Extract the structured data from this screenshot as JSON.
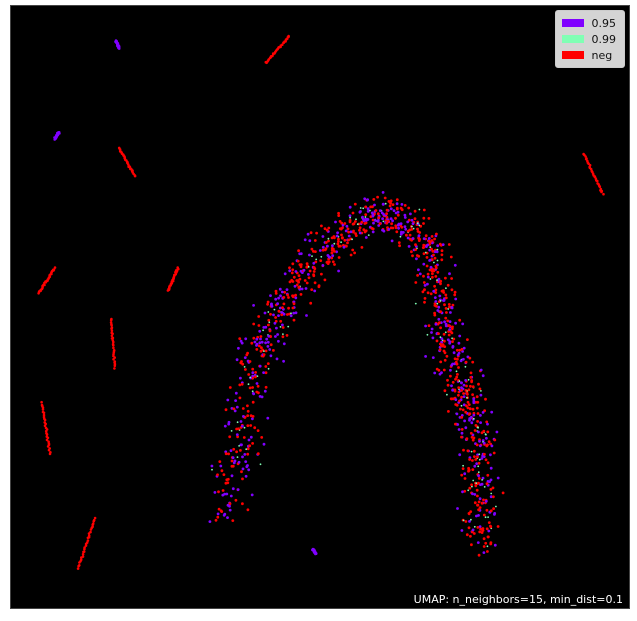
{
  "chart_data": {
    "type": "scatter",
    "annotation": "UMAP: n_neighbors=15, min_dist=0.1",
    "legend_placement": "top-right",
    "grid": false,
    "axes_ticks": false,
    "background": "#000000",
    "series": [
      {
        "name": "0.95",
        "color": "#8000ff"
      },
      {
        "name": "0.99",
        "color": "#80ffb4"
      },
      {
        "name": "neg",
        "color": "#ff0000"
      }
    ]
  }
}
